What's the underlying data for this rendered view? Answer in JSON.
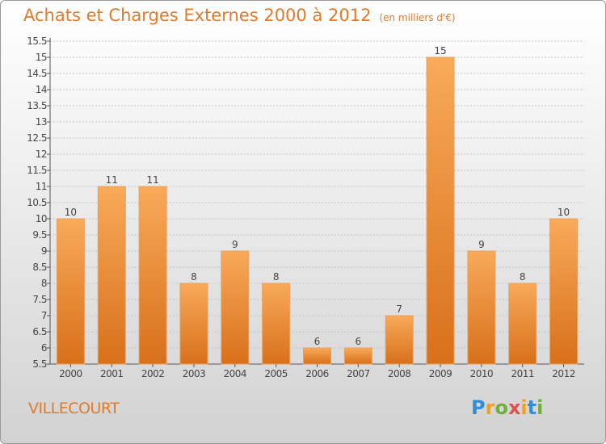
{
  "header": {
    "title": "Achats et Charges Externes 2000 à 2012",
    "subtitle": "(en milliers d'€)"
  },
  "footer": {
    "town": "VILLECOURT",
    "logo_text": "Proxiti"
  },
  "colors": {
    "bar": "#f0902a",
    "bar_light": "#f8aa5a",
    "title": "#e07a2c"
  },
  "chart_data": {
    "type": "bar",
    "title": "Achats et Charges Externes 2000 à 2012",
    "subtitle": "(en milliers d'€)",
    "categories": [
      "2000",
      "2001",
      "2002",
      "2003",
      "2004",
      "2005",
      "2006",
      "2007",
      "2008",
      "2009",
      "2010",
      "2011",
      "2012"
    ],
    "values": [
      10,
      11,
      11,
      8,
      9,
      8,
      6,
      6,
      7,
      15,
      9,
      8,
      10
    ],
    "ylim": [
      5.5,
      15.5
    ],
    "yticks": [
      5.5,
      6,
      6.5,
      7,
      7.5,
      8,
      8.5,
      9,
      9.5,
      10,
      10.5,
      11,
      11.5,
      12,
      12.5,
      13,
      13.5,
      14,
      14.5,
      15,
      15.5
    ],
    "grid": true,
    "xlabel": "",
    "ylabel": ""
  }
}
